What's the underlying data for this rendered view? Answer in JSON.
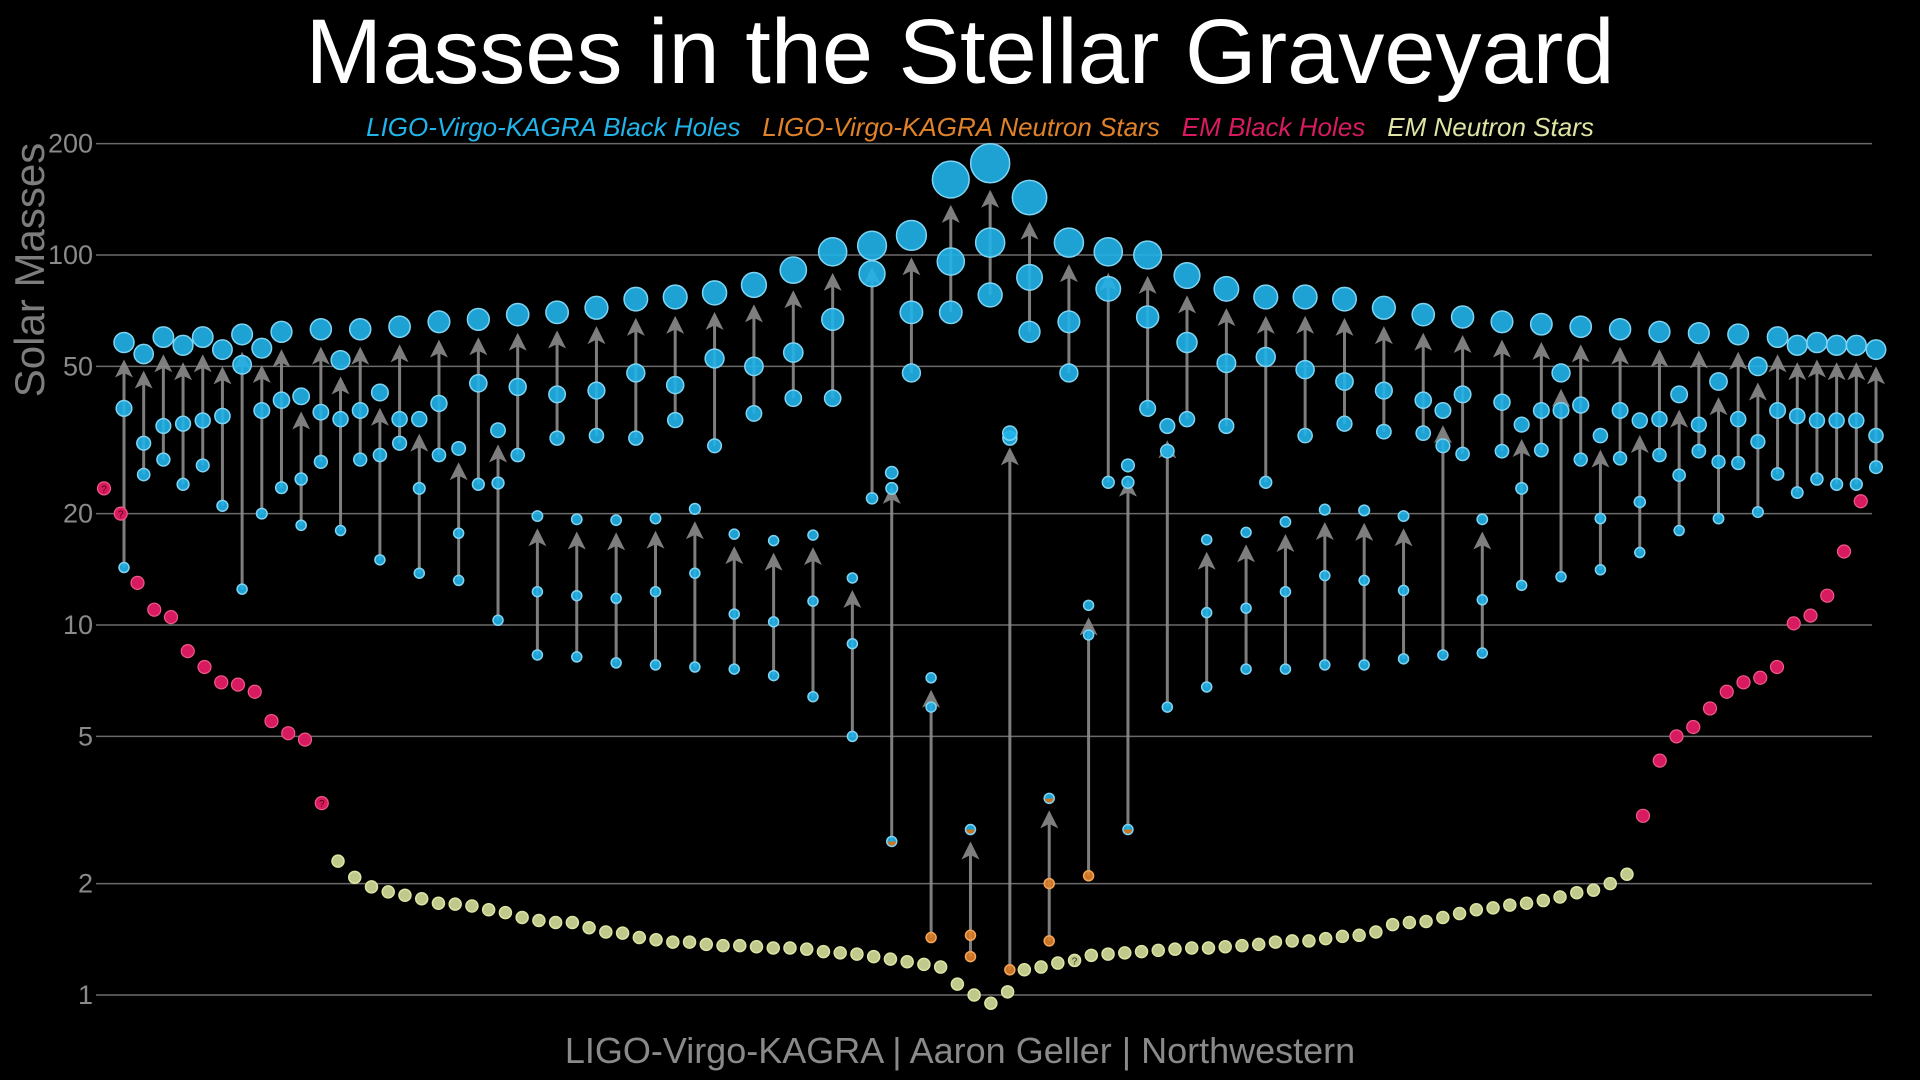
{
  "chart_data": {
    "type": "scatter",
    "title": "Masses in the Stellar Graveyard",
    "ylabel": "Solar Masses",
    "footer": "LIGO-Virgo-KAGRA | Aaron Geller | Northwestern",
    "yscale": "log",
    "ylim": [
      0.9,
      210
    ],
    "yticks": [
      1,
      2,
      5,
      10,
      20,
      50,
      100,
      200
    ],
    "grid": true,
    "legend_placement": "top",
    "legend": [
      {
        "label": "LIGO-Virgo-KAGRA Black Holes",
        "color": "#20b4ea"
      },
      {
        "label": "LIGO-Virgo-KAGRA Neutron Stars",
        "color": "#e0822a"
      },
      {
        "label": "EM Black Holes",
        "color": "#d81b60"
      },
      {
        "label": "EM Neutron Stars",
        "color": "#dfe3a3"
      }
    ],
    "colors": {
      "bh": "#20b4ea",
      "ns": "#e0822a",
      "em_bh": "#d81b60",
      "em_ns": "#dfe3a3",
      "arrow": "#8c8c8c",
      "grid": "#6a6a6a"
    },
    "gw_mergers": [
      {
        "final": 58,
        "m1": 38.5,
        "m2": 14.3
      },
      {
        "final": 54,
        "m1": 31,
        "m2": 25.5
      },
      {
        "final": 60,
        "m1": 34.5,
        "m2": 28
      },
      {
        "final": 57,
        "m1": 35,
        "m2": 24
      },
      {
        "final": 60,
        "m1": 35.7,
        "m2": 27
      },
      {
        "final": 55.5,
        "m1": 36.7,
        "m2": 21
      },
      {
        "final": 61,
        "m1": 50.5,
        "m2": 12.5
      },
      {
        "final": 56,
        "m1": 38,
        "m2": 20
      },
      {
        "final": 62,
        "m1": 40.5,
        "m2": 23.5
      },
      {
        "final": 41.5,
        "m1": 24.8,
        "m2": 18.6
      },
      {
        "final": 63,
        "m1": 37.6,
        "m2": 27.6
      },
      {
        "final": 52,
        "m1": 36,
        "m2": 18
      },
      {
        "final": 63,
        "m1": 38,
        "m2": 28
      },
      {
        "final": 42.5,
        "m1": 28.8,
        "m2": 15
      },
      {
        "final": 64,
        "m1": 36,
        "m2": 31
      },
      {
        "final": 36,
        "m1": 23.4,
        "m2": 13.8
      },
      {
        "final": 66,
        "m1": 39.7,
        "m2": 28.8
      },
      {
        "final": 30,
        "m1": 17.7,
        "m2": 13.2
      },
      {
        "final": 67,
        "m1": 45,
        "m2": 24
      },
      {
        "final": 33.6,
        "m1": 24.2,
        "m2": 10.3
      },
      {
        "final": 69,
        "m1": 44,
        "m2": 28.8
      },
      {
        "final": 19.7,
        "m1": 12.3,
        "m2": 8.3
      },
      {
        "final": 70,
        "m1": 42,
        "m2": 32
      },
      {
        "final": 19.3,
        "m1": 12,
        "m2": 8.2
      },
      {
        "final": 72,
        "m1": 43,
        "m2": 32.5
      },
      {
        "final": 19.2,
        "m1": 11.8,
        "m2": 7.9
      },
      {
        "final": 76,
        "m1": 48,
        "m2": 32
      },
      {
        "final": 19.4,
        "m1": 12.3,
        "m2": 7.8
      },
      {
        "final": 77,
        "m1": 44.5,
        "m2": 35.8
      },
      {
        "final": 20.6,
        "m1": 13.8,
        "m2": 7.7
      },
      {
        "final": 79,
        "m1": 52.5,
        "m2": 30.5
      },
      {
        "final": 17.6,
        "m1": 10.7,
        "m2": 7.6
      },
      {
        "final": 83,
        "m1": 50,
        "m2": 37.3
      },
      {
        "final": 16.9,
        "m1": 10.2,
        "m2": 7.3
      },
      {
        "final": 91,
        "m1": 54.5,
        "m2": 41
      },
      {
        "final": 17.5,
        "m1": 11.6,
        "m2": 6.4
      },
      {
        "final": 102,
        "m1": 67,
        "m2": 41
      },
      {
        "final": 13.4,
        "m1": 8.9,
        "m2": 5.0
      },
      {
        "final": 106,
        "m1": 89,
        "m2": 22
      },
      {
        "final": 25.8,
        "m1": 23.4,
        "m2": 2.6,
        "kinds": [
          "bh",
          "bh",
          "gap"
        ]
      },
      {
        "final": 113,
        "m1": 70,
        "m2": 48
      },
      {
        "final": 7.2,
        "m1": 6.0,
        "m2": 1.43,
        "kinds": [
          "bh",
          "bh",
          "ns"
        ]
      },
      {
        "final": 160,
        "m1": 96,
        "m2": 70
      },
      {
        "final": 2.8,
        "m1": 1.45,
        "m2": 1.27,
        "kinds": [
          "gap",
          "ns",
          "ns"
        ]
      },
      {
        "final": 177,
        "m1": 108,
        "m2": 78
      },
      {
        "final": 33,
        "m1": 32,
        "m2": 1.17,
        "kinds": [
          "bh",
          "bh",
          "ns"
        ]
      },
      {
        "final": 143,
        "m1": 87,
        "m2": 62
      },
      {
        "final": 3.4,
        "m1": 2.0,
        "m2": 1.4,
        "kinds": [
          "gap",
          "ns",
          "ns"
        ]
      },
      {
        "final": 108,
        "m1": 66,
        "m2": 48
      },
      {
        "final": 11.3,
        "m1": 9.4,
        "m2": 2.1,
        "kinds": [
          "bh",
          "bh",
          "ns"
        ]
      },
      {
        "final": 102,
        "m1": 81,
        "m2": 24.3
      },
      {
        "final": 27,
        "m1": 24.3,
        "m2": 2.8,
        "kinds": [
          "bh",
          "bh",
          "gap"
        ]
      },
      {
        "final": 100,
        "m1": 68,
        "m2": 38.5
      },
      {
        "final": 34.5,
        "m1": 29.5,
        "m2": 6.0
      },
      {
        "final": 88,
        "m1": 58,
        "m2": 36
      },
      {
        "final": 17,
        "m1": 10.8,
        "m2": 6.8
      },
      {
        "final": 81,
        "m1": 51,
        "m2": 34.5
      },
      {
        "final": 17.8,
        "m1": 11.1,
        "m2": 7.6
      },
      {
        "final": 77,
        "m1": 53,
        "m2": 24.3
      },
      {
        "final": 19,
        "m1": 12.3,
        "m2": 7.6
      },
      {
        "final": 77,
        "m1": 49,
        "m2": 32.5
      },
      {
        "final": 20.5,
        "m1": 13.6,
        "m2": 7.8
      },
      {
        "final": 76,
        "m1": 45.5,
        "m2": 35
      },
      {
        "final": 20.4,
        "m1": 13.2,
        "m2": 7.8
      },
      {
        "final": 72,
        "m1": 43,
        "m2": 33.3
      },
      {
        "final": 19.7,
        "m1": 12.4,
        "m2": 8.1
      },
      {
        "final": 69,
        "m1": 40.5,
        "m2": 33
      },
      {
        "final": 38,
        "m1": 30.5,
        "m2": 8.3
      },
      {
        "final": 68,
        "m1": 42,
        "m2": 29
      },
      {
        "final": 19.3,
        "m1": 11.7,
        "m2": 8.4
      },
      {
        "final": 66,
        "m1": 40,
        "m2": 29.5
      },
      {
        "final": 34.8,
        "m1": 23.4,
        "m2": 12.8
      },
      {
        "final": 65,
        "m1": 38,
        "m2": 29.7
      },
      {
        "final": 48,
        "m1": 38,
        "m2": 13.5
      },
      {
        "final": 64,
        "m1": 39.3,
        "m2": 28
      },
      {
        "final": 32.5,
        "m1": 19.4,
        "m2": 14.1
      },
      {
        "final": 63,
        "m1": 38,
        "m2": 28.2
      },
      {
        "final": 35.7,
        "m1": 21.5,
        "m2": 15.7
      },
      {
        "final": 62,
        "m1": 36,
        "m2": 28.8
      },
      {
        "final": 42,
        "m1": 25.4,
        "m2": 18
      },
      {
        "final": 61.5,
        "m1": 34.8,
        "m2": 29.5
      },
      {
        "final": 45.5,
        "m1": 27.6,
        "m2": 19.4
      },
      {
        "final": 61,
        "m1": 36,
        "m2": 27.4
      },
      {
        "final": 50,
        "m1": 31.3,
        "m2": 20.2
      },
      {
        "final": 60,
        "m1": 38,
        "m2": 25.6
      },
      {
        "final": 57,
        "m1": 36.7,
        "m2": 22.8
      },
      {
        "final": 58,
        "m1": 35.7,
        "m2": 24.8
      },
      {
        "final": 57,
        "m1": 35.7,
        "m2": 24
      },
      {
        "final": 57,
        "m1": 35.7,
        "m2": 24
      },
      {
        "final": 55.5,
        "m1": 32.5,
        "m2": 26.7
      }
    ],
    "em_black_holes": [
      {
        "m": 23.4,
        "uncertain": true
      },
      {
        "m": 20,
        "uncertain": true
      },
      {
        "m": 13
      },
      {
        "m": 11
      },
      {
        "m": 10.5
      },
      {
        "m": 8.5
      },
      {
        "m": 7.7
      },
      {
        "m": 7.0
      },
      {
        "m": 6.9
      },
      {
        "m": 6.6
      },
      {
        "m": 5.5
      },
      {
        "m": 5.1
      },
      {
        "m": 4.9
      },
      {
        "m": 3.3,
        "uncertain": true
      },
      {
        "m": 3.05
      },
      {
        "m": 4.3
      },
      {
        "m": 5.0
      },
      {
        "m": 5.3
      },
      {
        "m": 5.95
      },
      {
        "m": 6.6
      },
      {
        "m": 7.0
      },
      {
        "m": 7.2
      },
      {
        "m": 7.7
      },
      {
        "m": 10.1
      },
      {
        "m": 10.6
      },
      {
        "m": 12
      },
      {
        "m": 15.8
      },
      {
        "m": 21.6
      }
    ],
    "em_neutron_stars": [
      {
        "m": 2.3
      },
      {
        "m": 2.08
      },
      {
        "m": 1.96
      },
      {
        "m": 1.9
      },
      {
        "m": 1.86
      },
      {
        "m": 1.82
      },
      {
        "m": 1.77
      },
      {
        "m": 1.76
      },
      {
        "m": 1.74
      },
      {
        "m": 1.7
      },
      {
        "m": 1.67
      },
      {
        "m": 1.62
      },
      {
        "m": 1.59
      },
      {
        "m": 1.57
      },
      {
        "m": 1.57
      },
      {
        "m": 1.52
      },
      {
        "m": 1.48
      },
      {
        "m": 1.47
      },
      {
        "m": 1.43
      },
      {
        "m": 1.41
      },
      {
        "m": 1.39
      },
      {
        "m": 1.39
      },
      {
        "m": 1.37
      },
      {
        "m": 1.36
      },
      {
        "m": 1.36
      },
      {
        "m": 1.35
      },
      {
        "m": 1.34
      },
      {
        "m": 1.34
      },
      {
        "m": 1.33
      },
      {
        "m": 1.31
      },
      {
        "m": 1.3
      },
      {
        "m": 1.29
      },
      {
        "m": 1.27
      },
      {
        "m": 1.25
      },
      {
        "m": 1.23
      },
      {
        "m": 1.21
      },
      {
        "m": 1.19
      },
      {
        "m": 1.07
      },
      {
        "m": 1.0
      },
      {
        "m": 0.95
      },
      {
        "m": 1.02
      },
      {
        "m": 1.17
      },
      {
        "m": 1.19
      },
      {
        "m": 1.22
      },
      {
        "m": 1.24,
        "uncertain": true
      },
      {
        "m": 1.28
      },
      {
        "m": 1.29
      },
      {
        "m": 1.3
      },
      {
        "m": 1.31
      },
      {
        "m": 1.32
      },
      {
        "m": 1.33
      },
      {
        "m": 1.34
      },
      {
        "m": 1.34
      },
      {
        "m": 1.35
      },
      {
        "m": 1.36
      },
      {
        "m": 1.37
      },
      {
        "m": 1.39
      },
      {
        "m": 1.4
      },
      {
        "m": 1.4
      },
      {
        "m": 1.42
      },
      {
        "m": 1.44
      },
      {
        "m": 1.45
      },
      {
        "m": 1.48
      },
      {
        "m": 1.55
      },
      {
        "m": 1.57
      },
      {
        "m": 1.58
      },
      {
        "m": 1.62
      },
      {
        "m": 1.66
      },
      {
        "m": 1.7
      },
      {
        "m": 1.72
      },
      {
        "m": 1.75
      },
      {
        "m": 1.77
      },
      {
        "m": 1.8
      },
      {
        "m": 1.84
      },
      {
        "m": 1.89
      },
      {
        "m": 1.92
      },
      {
        "m": 2.0
      },
      {
        "m": 2.12
      }
    ]
  }
}
